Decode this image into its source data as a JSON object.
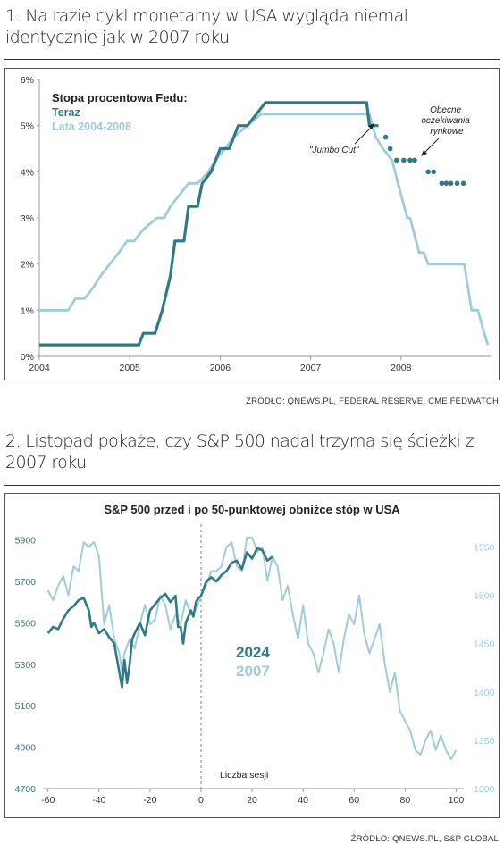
{
  "sections": [
    {
      "heading": "1. Na razie cykl monetarny w USA wygląda niemal identycznie jak w 2007 roku",
      "source": "ŹRÓDŁO: QNEWS.PL, FEDERAL RESERVE, CME FEDWATCH"
    },
    {
      "heading": "2. Listopad pokaże, czy S&P 500 nadal trzyma się ścieżki z 2007 roku",
      "source": "ŹRÓDŁO: QNEWS.PL, S&P GLOBAL"
    }
  ],
  "chart_data": [
    {
      "type": "line",
      "title": "",
      "legend_title": "Stopa procentowa Fedu:",
      "legend_position": "top-left",
      "xlabel": "",
      "ylabel": "",
      "x_ticks": [
        "2004",
        "2005",
        "2006",
        "2007",
        "2008"
      ],
      "y_ticks": [
        "0%",
        "1%",
        "2%",
        "3%",
        "4%",
        "5%",
        "6%"
      ],
      "xlim": [
        2004,
        2009.0
      ],
      "ylim": [
        0,
        6
      ],
      "grid": false,
      "series": [
        {
          "name": "Teraz",
          "color": "#2e7b87",
          "x": [
            2004.0,
            2005.1,
            2005.15,
            2005.28,
            2005.36,
            2005.45,
            2005.5,
            2005.6,
            2005.65,
            2005.75,
            2005.8,
            2005.9,
            2006.0,
            2006.1,
            2006.2,
            2006.3,
            2006.4,
            2006.5,
            2007.62,
            2007.65,
            2007.75
          ],
          "y": [
            0.25,
            0.25,
            0.5,
            0.5,
            1.0,
            1.75,
            2.5,
            2.5,
            3.25,
            3.25,
            3.75,
            4.0,
            4.5,
            4.5,
            5.0,
            5.0,
            5.25,
            5.5,
            5.5,
            5.0,
            5.0
          ]
        },
        {
          "name": "Lata 2004-2008",
          "color": "#9fccd9",
          "x": [
            2004.0,
            2004.32,
            2004.4,
            2004.5,
            2004.6,
            2004.68,
            2004.78,
            2004.88,
            2004.97,
            2005.05,
            2005.15,
            2005.3,
            2005.38,
            2005.45,
            2005.55,
            2005.65,
            2005.75,
            2005.87,
            2005.95,
            2006.05,
            2006.15,
            2006.3,
            2006.45,
            2007.65,
            2007.72,
            2007.8,
            2007.9,
            2008.0,
            2008.07,
            2008.1,
            2008.2,
            2008.25,
            2008.3,
            2008.7,
            2008.78,
            2008.85,
            2008.92,
            2008.96
          ],
          "y": [
            1.0,
            1.0,
            1.25,
            1.25,
            1.5,
            1.75,
            2.0,
            2.25,
            2.5,
            2.5,
            2.75,
            3.0,
            3.0,
            3.25,
            3.5,
            3.75,
            3.75,
            4.0,
            4.25,
            4.5,
            4.75,
            5.0,
            5.25,
            5.25,
            4.75,
            4.5,
            4.25,
            3.5,
            3.0,
            3.0,
            2.25,
            2.25,
            2.0,
            2.0,
            1.0,
            1.0,
            0.5,
            0.25
          ]
        },
        {
          "name": "Obecne oczekiwania rynkowe",
          "color": "#2e7b87",
          "style": "dots",
          "x": [
            2007.83,
            2007.88,
            2007.95,
            2008.03,
            2008.1,
            2008.15,
            2008.3,
            2008.36,
            2008.45,
            2008.5,
            2008.55,
            2008.62,
            2008.69
          ],
          "y": [
            4.75,
            4.5,
            4.25,
            4.25,
            4.25,
            4.25,
            4.0,
            4.0,
            3.75,
            3.75,
            3.75,
            3.75,
            3.75
          ]
        }
      ],
      "annotations": [
        {
          "text": "\"Jumbo Cut\"",
          "x": 2007.5,
          "y": 4.6
        },
        {
          "text": "Obecne oczekiwania rynkowe",
          "x": 2008.5,
          "y": 5.2
        }
      ]
    },
    {
      "type": "line",
      "title": "S&P 500 przed i po 50-punktowej obniżce stóp w USA",
      "xlabel": "",
      "ylabel": "",
      "annotation": "Liczba sesji",
      "legend_position": "center",
      "x_ticks": [
        "-60",
        "-40",
        "-20",
        "0",
        "20",
        "40",
        "60",
        "80",
        "100"
      ],
      "xlim": [
        -62,
        103
      ],
      "y_left_ticks": [
        "4700",
        "4900",
        "5100",
        "5300",
        "5500",
        "5700",
        "5900"
      ],
      "y_left_lim": [
        4700,
        5950
      ],
      "y_right_ticks": [
        "1300",
        "1350",
        "1400",
        "1450",
        "1500",
        "1550"
      ],
      "y_right_lim": [
        1300,
        1568
      ],
      "vline_x": 0,
      "grid": false,
      "series": [
        {
          "name": "2024",
          "axis": "left",
          "color": "#2e7b87",
          "x": [
            -60,
            -58,
            -56,
            -54,
            -52,
            -50,
            -48,
            -46,
            -45,
            -44,
            -43,
            -42,
            -40,
            -38,
            -36,
            -34,
            -32,
            -31,
            -30,
            -29,
            -28,
            -27,
            -26,
            -24,
            -22,
            -20,
            -18,
            -16,
            -14,
            -12,
            -10,
            -9,
            -8,
            -7,
            -6,
            -4,
            -3,
            -2,
            -1,
            0,
            2,
            4,
            6,
            8,
            10,
            12,
            14,
            16,
            18,
            20,
            22,
            24,
            26,
            28
          ],
          "y": [
            5450,
            5480,
            5470,
            5520,
            5560,
            5580,
            5610,
            5620,
            5590,
            5560,
            5480,
            5500,
            5450,
            5470,
            5430,
            5400,
            5260,
            5190,
            5320,
            5210,
            5300,
            5420,
            5450,
            5500,
            5440,
            5560,
            5590,
            5620,
            5640,
            5600,
            5630,
            5480,
            5480,
            5400,
            5500,
            5560,
            5530,
            5600,
            5620,
            5630,
            5700,
            5720,
            5700,
            5730,
            5750,
            5790,
            5800,
            5760,
            5840,
            5810,
            5860,
            5850,
            5800,
            5820
          ]
        },
        {
          "name": "2007",
          "axis": "right",
          "color": "#9fccd9",
          "x": [
            -60,
            -58,
            -56,
            -54,
            -52,
            -50,
            -48,
            -46,
            -44,
            -42,
            -40,
            -38,
            -36,
            -34,
            -32,
            -31,
            -30,
            -28,
            -26,
            -24,
            -22,
            -20,
            -18,
            -16,
            -14,
            -12,
            -10,
            -8,
            -6,
            -4,
            -2,
            0,
            2,
            4,
            6,
            8,
            10,
            12,
            14,
            16,
            18,
            20,
            22,
            24,
            26,
            28,
            30,
            32,
            34,
            36,
            38,
            40,
            42,
            44,
            46,
            48,
            50,
            52,
            54,
            56,
            58,
            60,
            62,
            64,
            66,
            68,
            70,
            72,
            74,
            76,
            78,
            80,
            82,
            84,
            86,
            88,
            90,
            92,
            94,
            96,
            98,
            100
          ],
          "y": [
            1505,
            1495,
            1510,
            1520,
            1500,
            1530,
            1525,
            1555,
            1550,
            1555,
            1540,
            1470,
            1490,
            1455,
            1440,
            1420,
            1440,
            1455,
            1445,
            1470,
            1490,
            1470,
            1475,
            1500,
            1490,
            1465,
            1480,
            1470,
            1495,
            1480,
            1485,
            1500,
            1510,
            1525,
            1525,
            1530,
            1550,
            1555,
            1530,
            1525,
            1560,
            1560,
            1545,
            1550,
            1515,
            1540,
            1530,
            1495,
            1510,
            1480,
            1455,
            1490,
            1450,
            1440,
            1420,
            1440,
            1465,
            1450,
            1420,
            1455,
            1480,
            1470,
            1500,
            1460,
            1440,
            1455,
            1470,
            1430,
            1400,
            1420,
            1380,
            1370,
            1360,
            1340,
            1335,
            1350,
            1360,
            1340,
            1355,
            1340,
            1330,
            1340
          ]
        }
      ]
    }
  ]
}
